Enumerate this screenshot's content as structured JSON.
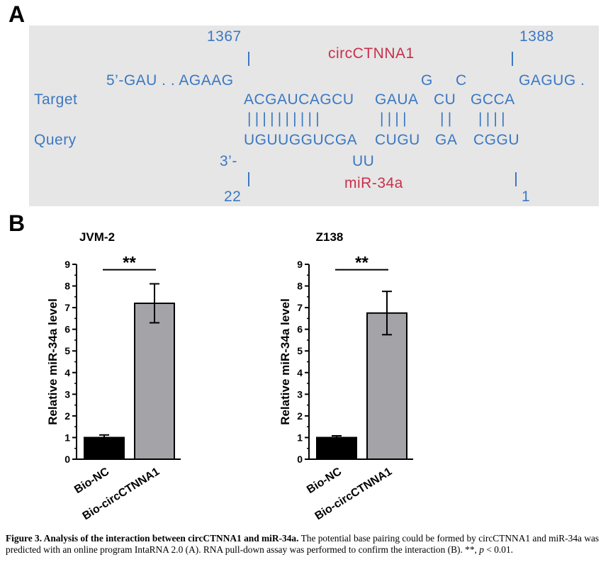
{
  "panel_a": {
    "letter": "A",
    "top_start": "1367",
    "top_end": "1388",
    "circ_label": "circCTNNA1",
    "five_prime": "5’-GAU . . AGAAG",
    "bulge_g": "G",
    "bulge_c": "C",
    "tail": "GAGUG .",
    "target_label": "Target",
    "query_label": "Query",
    "target_1": "ACGAUCAGCU",
    "target_2": "GAUA",
    "target_3": "CU",
    "target_4": "GCCA",
    "pairs_1": "| | | | | | | | | |",
    "pairs_2": "| | | |",
    "pairs_3": "| |",
    "pairs_4": "| | | |",
    "query_1": "UGUUGGUCGA",
    "query_2": "CUGU",
    "query_3": "GA",
    "query_4": "CGGU",
    "three_prime": "3’-",
    "uu": "UU",
    "mir_label": "miR-34a",
    "bottom_start": "22",
    "bottom_end": "1"
  },
  "panel_b": {
    "letter": "B"
  },
  "chart_data": [
    {
      "type": "bar",
      "title": "JVM-2",
      "ylabel": "Relative miR-34a level",
      "categories": [
        "Bio-NC",
        "Bio-circCTNNA1"
      ],
      "values": [
        1.0,
        7.2
      ],
      "errors": [
        0.12,
        0.9
      ],
      "colors": [
        "#000000",
        "#a3a3a8"
      ],
      "ylim": [
        0,
        9
      ],
      "yticks": [
        "0",
        "1",
        "2",
        "3",
        "4",
        "5",
        "6",
        "7",
        "8",
        "9"
      ],
      "significance": "**"
    },
    {
      "type": "bar",
      "title": "Z138",
      "ylabel": "Relative miR-34a level",
      "categories": [
        "Bio-NC",
        "Bio-circCTNNA1"
      ],
      "values": [
        1.0,
        6.75
      ],
      "errors": [
        0.08,
        1.0
      ],
      "colors": [
        "#000000",
        "#a3a3a8"
      ],
      "ylim": [
        0,
        9
      ],
      "yticks": [
        "0",
        "1",
        "2",
        "3",
        "4",
        "5",
        "6",
        "7",
        "8",
        "9"
      ],
      "significance": "**"
    }
  ],
  "caption": {
    "bold": "Figure 3. Analysis of the interaction between circCTNNA1 and miR-34a.",
    "text": " The potential base pairing could be formed by circCTNNA1 and miR-34a was predicted with an online program IntaRNA 2.0 (A). RNA pull-down assay was performed to confirm the interaction (B). **, ",
    "p_symbol": "p",
    "tail": " < 0.01."
  }
}
